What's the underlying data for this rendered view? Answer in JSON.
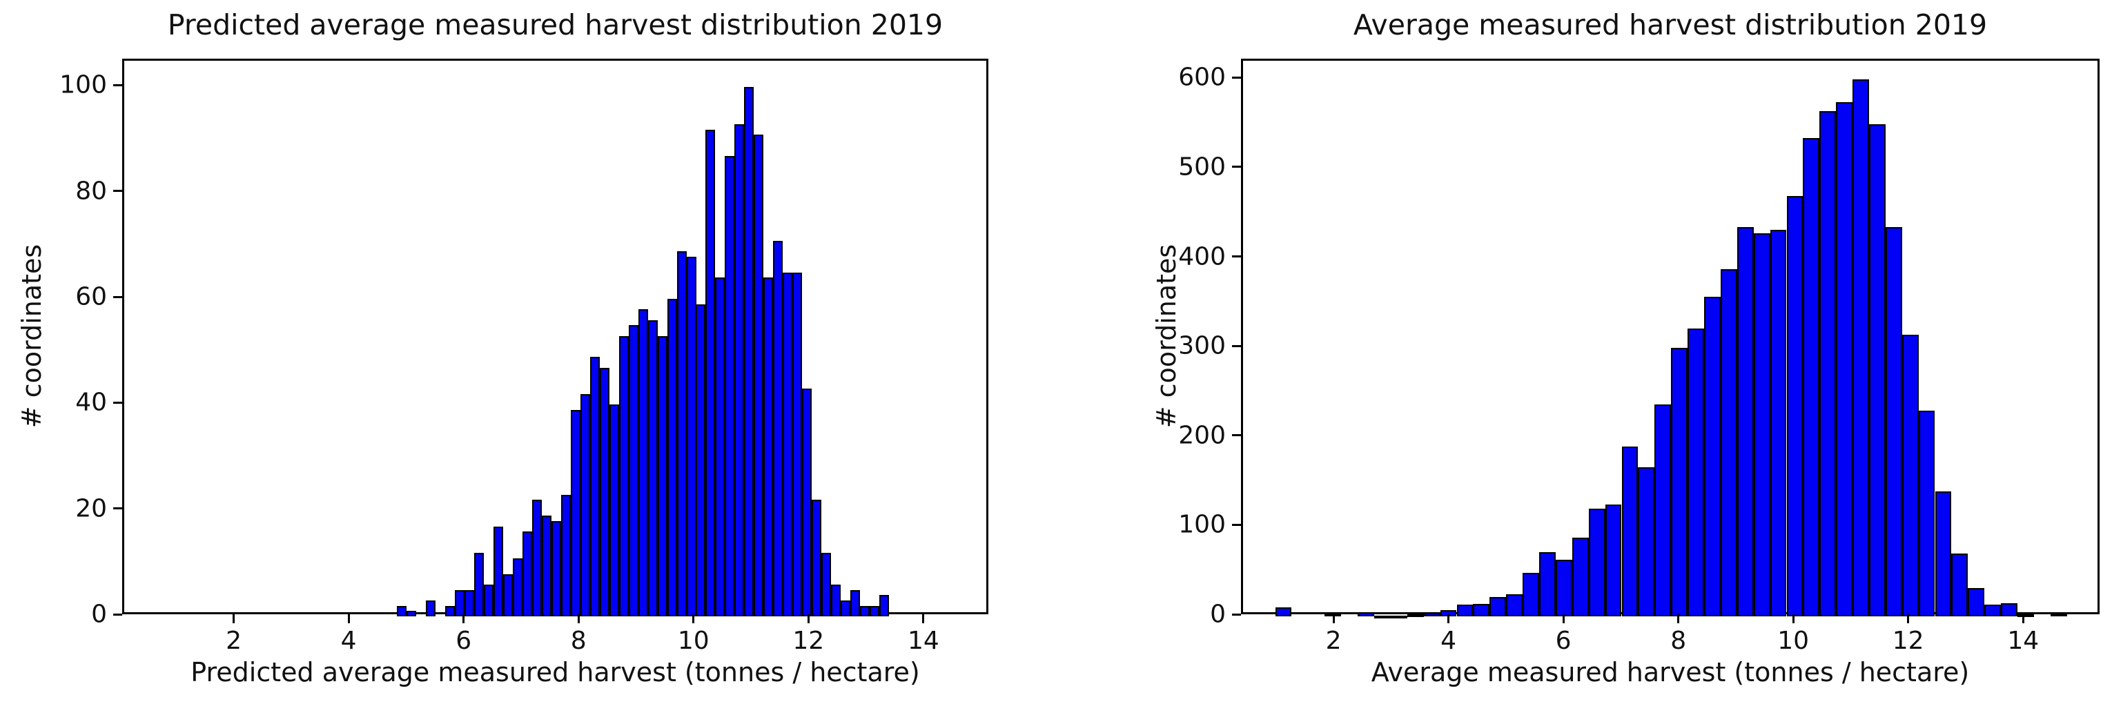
{
  "figure": {
    "background_color": "#ffffff",
    "bar_fill_color": "#0101f5",
    "bar_edge_color": "#000000",
    "text_color": "#111111"
  },
  "chart_data": [
    {
      "type": "bar",
      "subtype": "histogram",
      "title": "Predicted average measured harvest distribution 2019",
      "xlabel": "Predicted average measured harvest (tonnes / hectare)",
      "ylabel": "# coordinates",
      "grid": false,
      "legend": null,
      "xlim": [
        0.06,
        15.13
      ],
      "ylim": [
        0,
        105
      ],
      "xticks": [
        2,
        4,
        6,
        8,
        10,
        12,
        14
      ],
      "yticks": [
        0,
        20,
        40,
        60,
        80,
        100
      ],
      "bin_start": 4.8,
      "bin_width": 0.168,
      "values": [
        2,
        1,
        0,
        3,
        0,
        2,
        5,
        5,
        12,
        6,
        17,
        8,
        11,
        16,
        22,
        19,
        18,
        23,
        39,
        42,
        49,
        47,
        40,
        53,
        55,
        58,
        56,
        53,
        60,
        69,
        68,
        59,
        92,
        64,
        87,
        93,
        100,
        91,
        64,
        71,
        65,
        65,
        43,
        22,
        12,
        6,
        3,
        5,
        2,
        2,
        4
      ]
    },
    {
      "type": "bar",
      "subtype": "histogram",
      "title": "Average measured harvest distribution 2019",
      "xlabel": "Average measured harvest (tonnes / hectare)",
      "ylabel": "# coordinates",
      "grid": false,
      "legend": null,
      "xlim": [
        0.39,
        15.33
      ],
      "ylim": [
        0,
        621
      ],
      "xticks": [
        2,
        4,
        6,
        8,
        10,
        12,
        14
      ],
      "yticks": [
        0,
        100,
        200,
        300,
        400,
        500,
        600
      ],
      "bin_start": 0.95,
      "bin_width": 0.287,
      "values": [
        10,
        0,
        0,
        3,
        0,
        5,
        1,
        1,
        2,
        4,
        7,
        13,
        14,
        22,
        25,
        49,
        72,
        63,
        88,
        120,
        125,
        190,
        167,
        237,
        300,
        322,
        357,
        388,
        435,
        428,
        432,
        470,
        535,
        565,
        575,
        600,
        550,
        435,
        315,
        230,
        140,
        70,
        32,
        13,
        15,
        2,
        0,
        3
      ]
    }
  ]
}
